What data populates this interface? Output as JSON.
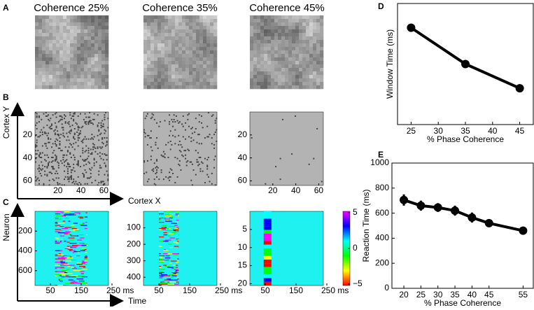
{
  "panel_letters": [
    "A",
    "B",
    "C",
    "D",
    "E"
  ],
  "coherence_titles": [
    "Coherence 25%",
    "Coherence 35%",
    "Coherence 45%"
  ],
  "cortex_axes": {
    "y_label": "Cortex Y",
    "x_label": "Cortex X",
    "yticks": [
      20,
      40,
      60
    ],
    "xticks": [
      20,
      40,
      60
    ]
  },
  "neuron_axes": {
    "y_label": "Neuron",
    "x_label": "Time",
    "yticks": [
      [
        200,
        400,
        600
      ],
      [
        100,
        200,
        300,
        400
      ],
      [
        5,
        10,
        15,
        20
      ]
    ],
    "xticks": [
      50,
      150,
      {
        "value": 250,
        "label": "250 ms"
      }
    ]
  },
  "colorbar": {
    "ticks": [
      5,
      0,
      {
        "value": -5,
        "label": "−5"
      }
    ]
  },
  "chart_data": [
    {
      "type": "line",
      "x": [
        25,
        35,
        45
      ],
      "values": [
        200,
        125,
        75
      ],
      "xlim": [
        22.5,
        47.5
      ],
      "ylim": [
        0,
        250
      ],
      "xticks": [
        25,
        30,
        35,
        40,
        45
      ],
      "xlabel": "% Phase Coherence",
      "ylabel": "Window Time (ms)",
      "color": "#000000"
    },
    {
      "type": "line",
      "x": [
        20,
        25,
        30,
        35,
        40,
        45,
        55
      ],
      "values": [
        705,
        660,
        645,
        620,
        565,
        520,
        460
      ],
      "errors": [
        45,
        40,
        35,
        40,
        40,
        15,
        20
      ],
      "xlim": [
        16.5,
        58
      ],
      "ylim": [
        0,
        1000
      ],
      "xticks": [
        20,
        25,
        30,
        35,
        40,
        45,
        55
      ],
      "yticks": [
        0,
        200,
        400,
        600,
        800,
        1000
      ],
      "xlabel": "% Phase Coherence",
      "ylabel": "Reaction Time (ms)",
      "color": "#000000"
    }
  ]
}
